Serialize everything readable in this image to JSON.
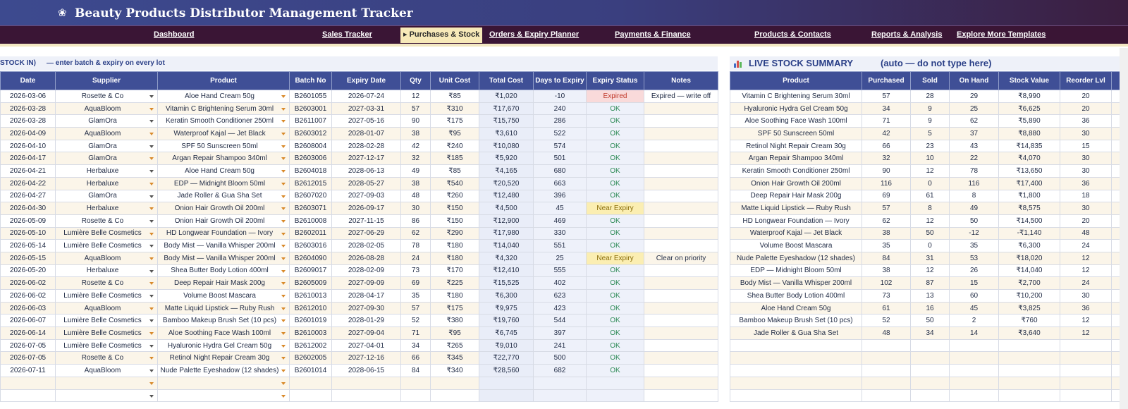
{
  "header": {
    "logo_icon": "flower-icon",
    "title": "Beauty Products Distributor Management Tracker"
  },
  "nav": [
    {
      "label": "Dashboard",
      "active": false
    },
    {
      "label": "Sales Tracker",
      "active": false
    },
    {
      "label": "▸ Purchases & Stock",
      "active": true
    },
    {
      "label": "Orders & Expiry Planner",
      "active": false
    },
    {
      "label": "Payments & Finance",
      "active": false
    },
    {
      "label": "Products & Contacts",
      "active": false
    },
    {
      "label": "Reports & Analysis",
      "active": false
    },
    {
      "label": "Explore More Templates",
      "active": false
    }
  ],
  "purchases": {
    "section_title_fragment": "STOCK IN)",
    "instruction": "— enter batch & expiry on every lot",
    "columns": [
      "Date",
      "Supplier",
      "Product",
      "Batch No",
      "Expiry Date",
      "Qty",
      "Unit Cost",
      "Total Cost",
      "Days to Expiry",
      "Expiry Status",
      "Notes"
    ],
    "rows": [
      [
        "2026-03-06",
        "Rosette & Co",
        "Aloe Hand Cream 50g",
        "B2601055",
        "2026-07-24",
        "12",
        "₹85",
        "₹1,020",
        "-10",
        "Expired",
        "Expired — write off"
      ],
      [
        "2026-03-28",
        "AquaBloom",
        "Vitamin C Brightening Serum 30ml",
        "B2603001",
        "2027-03-31",
        "57",
        "₹310",
        "₹17,670",
        "240",
        "OK",
        ""
      ],
      [
        "2026-03-28",
        "GlamOra",
        "Keratin Smooth Conditioner 250ml",
        "B2611007",
        "2027-05-16",
        "90",
        "₹175",
        "₹15,750",
        "286",
        "OK",
        ""
      ],
      [
        "2026-04-09",
        "AquaBloom",
        "Waterproof Kajal — Jet Black",
        "B2603012",
        "2028-01-07",
        "38",
        "₹95",
        "₹3,610",
        "522",
        "OK",
        ""
      ],
      [
        "2026-04-10",
        "GlamOra",
        "SPF 50 Sunscreen 50ml",
        "B2608004",
        "2028-02-28",
        "42",
        "₹240",
        "₹10,080",
        "574",
        "OK",
        ""
      ],
      [
        "2026-04-17",
        "GlamOra",
        "Argan Repair Shampoo 340ml",
        "B2603006",
        "2027-12-17",
        "32",
        "₹185",
        "₹5,920",
        "501",
        "OK",
        ""
      ],
      [
        "2026-04-21",
        "Herbaluxe",
        "Aloe Hand Cream 50g",
        "B2604018",
        "2028-06-13",
        "49",
        "₹85",
        "₹4,165",
        "680",
        "OK",
        ""
      ],
      [
        "2026-04-22",
        "Herbaluxe",
        "EDP — Midnight Bloom 50ml",
        "B2612015",
        "2028-05-27",
        "38",
        "₹540",
        "₹20,520",
        "663",
        "OK",
        ""
      ],
      [
        "2026-04-27",
        "GlamOra",
        "Jade Roller & Gua Sha Set",
        "B2607020",
        "2027-09-03",
        "48",
        "₹260",
        "₹12,480",
        "396",
        "OK",
        ""
      ],
      [
        "2026-04-30",
        "Herbaluxe",
        "Onion Hair Growth Oil 200ml",
        "B2603071",
        "2026-09-17",
        "30",
        "₹150",
        "₹4,500",
        "45",
        "Near Expiry",
        ""
      ],
      [
        "2026-05-09",
        "Rosette & Co",
        "Onion Hair Growth Oil 200ml",
        "B2610008",
        "2027-11-15",
        "86",
        "₹150",
        "₹12,900",
        "469",
        "OK",
        ""
      ],
      [
        "2026-05-10",
        "Lumière Belle Cosmetics",
        "HD Longwear Foundation — Ivory",
        "B2602011",
        "2027-06-29",
        "62",
        "₹290",
        "₹17,980",
        "330",
        "OK",
        ""
      ],
      [
        "2026-05-14",
        "Lumière Belle Cosmetics",
        "Body Mist — Vanilla Whisper 200ml",
        "B2603016",
        "2028-02-05",
        "78",
        "₹180",
        "₹14,040",
        "551",
        "OK",
        ""
      ],
      [
        "2026-05-15",
        "AquaBloom",
        "Body Mist — Vanilla Whisper 200ml",
        "B2604090",
        "2026-08-28",
        "24",
        "₹180",
        "₹4,320",
        "25",
        "Near Expiry",
        "Clear on priority"
      ],
      [
        "2026-05-20",
        "Herbaluxe",
        "Shea Butter Body Lotion 400ml",
        "B2609017",
        "2028-02-09",
        "73",
        "₹170",
        "₹12,410",
        "555",
        "OK",
        ""
      ],
      [
        "2026-06-02",
        "Rosette & Co",
        "Deep Repair Hair Mask 200g",
        "B2605009",
        "2027-09-09",
        "69",
        "₹225",
        "₹15,525",
        "402",
        "OK",
        ""
      ],
      [
        "2026-06-02",
        "Lumière Belle Cosmetics",
        "Volume Boost Mascara",
        "B2610013",
        "2028-04-17",
        "35",
        "₹180",
        "₹6,300",
        "623",
        "OK",
        ""
      ],
      [
        "2026-06-03",
        "AquaBloom",
        "Matte Liquid Lipstick — Ruby Rush",
        "B2612010",
        "2027-09-30",
        "57",
        "₹175",
        "₹9,975",
        "423",
        "OK",
        ""
      ],
      [
        "2026-06-07",
        "Lumière Belle Cosmetics",
        "Bamboo Makeup Brush Set (10 pcs)",
        "B2601019",
        "2028-01-29",
        "52",
        "₹380",
        "₹19,760",
        "544",
        "OK",
        ""
      ],
      [
        "2026-06-14",
        "Lumière Belle Cosmetics",
        "Aloe Soothing Face Wash 100ml",
        "B2610003",
        "2027-09-04",
        "71",
        "₹95",
        "₹6,745",
        "397",
        "OK",
        ""
      ],
      [
        "2026-07-05",
        "Lumière Belle Cosmetics",
        "Hyaluronic Hydra Gel Cream 50g",
        "B2612002",
        "2027-04-01",
        "34",
        "₹265",
        "₹9,010",
        "241",
        "OK",
        ""
      ],
      [
        "2026-07-05",
        "Rosette & Co",
        "Retinol Night Repair Cream 30g",
        "B2602005",
        "2027-12-16",
        "66",
        "₹345",
        "₹22,770",
        "500",
        "OK",
        ""
      ],
      [
        "2026-07-11",
        "AquaBloom",
        "Nude Palette Eyeshadow (12 shades)",
        "B2601014",
        "2028-06-15",
        "84",
        "₹340",
        "₹28,560",
        "682",
        "OK",
        ""
      ],
      [
        "",
        "",
        "",
        "",
        "",
        "",
        "",
        "",
        "",
        "",
        ""
      ],
      [
        "",
        "",
        "",
        "",
        "",
        "",
        "",
        "",
        "",
        "",
        ""
      ]
    ]
  },
  "stock_summary": {
    "icon": "bar-chart-icon",
    "title": "LIVE STOCK SUMMARY",
    "subtitle": "(auto — do not type here)",
    "columns": [
      "Product",
      "Purchased",
      "Sold",
      "On Hand",
      "Stock Value",
      "Reorder Lvl"
    ],
    "rows": [
      [
        "Vitamin C Brightening Serum 30ml",
        "57",
        "28",
        "29",
        "₹8,990",
        "20"
      ],
      [
        "Hyaluronic Hydra Gel Cream 50g",
        "34",
        "9",
        "25",
        "₹6,625",
        "20"
      ],
      [
        "Aloe Soothing Face Wash 100ml",
        "71",
        "9",
        "62",
        "₹5,890",
        "36"
      ],
      [
        "SPF 50 Sunscreen 50ml",
        "42",
        "5",
        "37",
        "₹8,880",
        "30"
      ],
      [
        "Retinol Night Repair Cream 30g",
        "66",
        "23",
        "43",
        "₹14,835",
        "15"
      ],
      [
        "Argan Repair Shampoo 340ml",
        "32",
        "10",
        "22",
        "₹4,070",
        "30"
      ],
      [
        "Keratin Smooth Conditioner 250ml",
        "90",
        "12",
        "78",
        "₹13,650",
        "30"
      ],
      [
        "Onion Hair Growth Oil 200ml",
        "116",
        "0",
        "116",
        "₹17,400",
        "36"
      ],
      [
        "Deep Repair Hair Mask 200g",
        "69",
        "61",
        "8",
        "₹1,800",
        "18"
      ],
      [
        "Matte Liquid Lipstick — Ruby Rush",
        "57",
        "8",
        "49",
        "₹8,575",
        "30"
      ],
      [
        "HD Longwear Foundation — Ivory",
        "62",
        "12",
        "50",
        "₹14,500",
        "20"
      ],
      [
        "Waterproof Kajal — Jet Black",
        "38",
        "50",
        "-12",
        "-₹1,140",
        "48"
      ],
      [
        "Volume Boost Mascara",
        "35",
        "0",
        "35",
        "₹6,300",
        "24"
      ],
      [
        "Nude Palette Eyeshadow (12 shades)",
        "84",
        "31",
        "53",
        "₹18,020",
        "12"
      ],
      [
        "EDP — Midnight Bloom 50ml",
        "38",
        "12",
        "26",
        "₹14,040",
        "12"
      ],
      [
        "Body Mist — Vanilla Whisper 200ml",
        "102",
        "87",
        "15",
        "₹2,700",
        "24"
      ],
      [
        "Shea Butter Body Lotion 400ml",
        "73",
        "13",
        "60",
        "₹10,200",
        "30"
      ],
      [
        "Aloe Hand Cream 50g",
        "61",
        "16",
        "45",
        "₹3,825",
        "36"
      ],
      [
        "Bamboo Makeup Brush Set (10 pcs)",
        "52",
        "50",
        "2",
        "₹760",
        "12"
      ],
      [
        "Jade Roller & Gua Sha Set",
        "48",
        "34",
        "14",
        "₹3,640",
        "12"
      ],
      [
        "",
        "",
        "",
        "",
        "",
        ""
      ],
      [
        "",
        "",
        "",
        "",
        "",
        ""
      ],
      [
        "",
        "",
        "",
        "",
        "",
        ""
      ],
      [
        "",
        "",
        "",
        "",
        "",
        ""
      ],
      [
        "",
        "",
        "",
        "",
        "",
        ""
      ]
    ]
  },
  "colors": {
    "header_bg": "#3f4f96",
    "nav_bg": "#3a1535",
    "ok": "#2e8b57",
    "expired": "#c0392b",
    "near_expiry_bg": "#fbeeb2"
  }
}
